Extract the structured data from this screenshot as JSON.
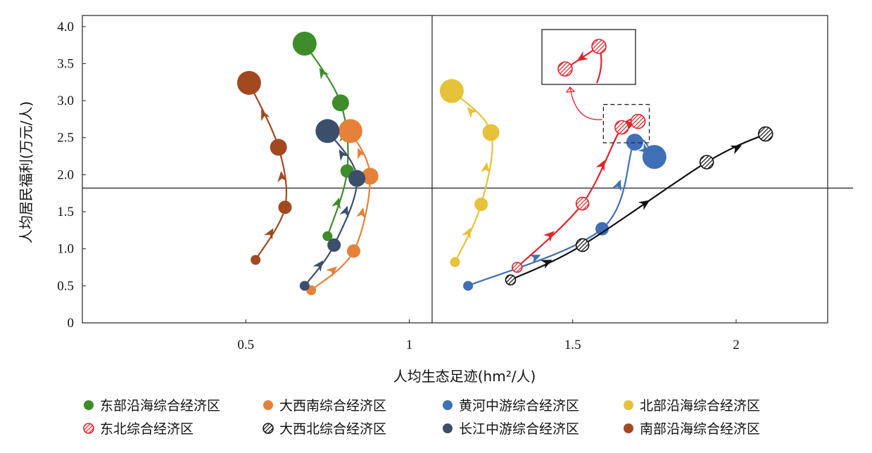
{
  "chart_data": {
    "type": "scatter",
    "xlabel": "人均生态足迹(hm²/人)",
    "ylabel": "人均居民福利(万元/人)",
    "xlim": [
      0,
      2.28
    ],
    "ylim": [
      0,
      4.15
    ],
    "x_ticks": [
      "0.5",
      "1",
      "1.5",
      "2"
    ],
    "y_ticks": [
      "0",
      "0.5",
      "1.0",
      "1.5",
      "2.0",
      "2.5",
      "3.0",
      "3.5",
      "4.0"
    ],
    "reference_lines": {
      "x": 1.07,
      "y": 1.82
    },
    "legend_position": "bottom",
    "series": [
      {
        "name": "东部沿海综合经济区",
        "color": "#3e8c2a",
        "marker": "solid",
        "points": [
          [
            0.75,
            1.17
          ],
          [
            0.81,
            2.05
          ],
          [
            0.79,
            2.97
          ],
          [
            0.68,
            3.77
          ]
        ]
      },
      {
        "name": "大西南综合经济区",
        "color": "#e6813a",
        "marker": "solid",
        "points": [
          [
            0.7,
            0.44
          ],
          [
            0.83,
            0.97
          ],
          [
            0.88,
            1.98
          ],
          [
            0.82,
            2.59
          ]
        ]
      },
      {
        "name": "黄河中游综合经济区",
        "color": "#3f6fb7",
        "marker": "solid",
        "points": [
          [
            1.18,
            0.5
          ],
          [
            1.59,
            1.27
          ],
          [
            1.69,
            2.44
          ],
          [
            1.75,
            2.24
          ]
        ]
      },
      {
        "name": "北部沿海综合经济区",
        "color": "#e6c13a",
        "marker": "solid",
        "points": [
          [
            1.14,
            0.82
          ],
          [
            1.22,
            1.6
          ],
          [
            1.25,
            2.57
          ],
          [
            1.13,
            3.13
          ]
        ]
      },
      {
        "name": "东北综合经济区",
        "color": "#e0242b",
        "marker": "hatched-red",
        "points": [
          [
            1.33,
            0.75
          ],
          [
            1.53,
            1.61
          ],
          [
            1.65,
            2.64
          ],
          [
            1.7,
            2.72
          ]
        ]
      },
      {
        "name": "大西北综合经济区",
        "color": "#111111",
        "marker": "hatched-black",
        "points": [
          [
            1.31,
            0.58
          ],
          [
            1.53,
            1.05
          ],
          [
            1.91,
            2.17
          ],
          [
            2.09,
            2.55
          ]
        ]
      },
      {
        "name": "长江中游综合经济区",
        "color": "#3b4f6b",
        "marker": "solid",
        "points": [
          [
            0.68,
            0.5
          ],
          [
            0.77,
            1.05
          ],
          [
            0.84,
            1.95
          ],
          [
            0.75,
            2.59
          ]
        ]
      },
      {
        "name": "南部沿海综合经济区",
        "color": "#a2491f",
        "marker": "solid",
        "points": [
          [
            0.53,
            0.85
          ],
          [
            0.62,
            1.56
          ],
          [
            0.6,
            2.37
          ],
          [
            0.51,
            3.24
          ]
        ]
      }
    ]
  }
}
